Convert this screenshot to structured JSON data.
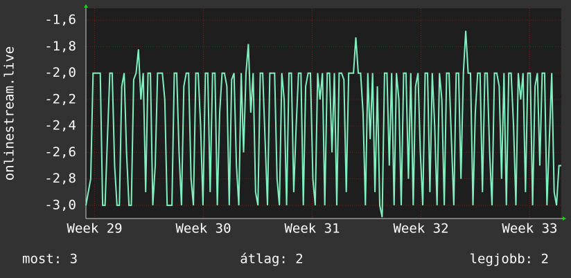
{
  "chart_data": {
    "type": "line",
    "y_label": "onlinestream.live",
    "footer": [
      "most: 3",
      "átlag: 2",
      "legjobb: 2"
    ],
    "color": "#80f0c0",
    "grid": true,
    "ylim": [
      -3.1,
      -1.51
    ],
    "yticks": [
      {
        "value": -3.0,
        "label": "-3,0"
      },
      {
        "value": -2.8,
        "label": "-2,8"
      },
      {
        "value": -2.6,
        "label": "-2,6"
      },
      {
        "value": -2.4,
        "label": "-2,4"
      },
      {
        "value": -2.2,
        "label": "-2,2"
      },
      {
        "value": -2.0,
        "label": "-2,0"
      },
      {
        "value": -1.8,
        "label": "-1,8"
      },
      {
        "value": -1.6,
        "label": "-1,6"
      }
    ],
    "xlim": [
      28.92,
      33.29
    ],
    "xticks": [
      {
        "value": 29,
        "label": "Week 29"
      },
      {
        "value": 30,
        "label": "Week 30"
      },
      {
        "value": 31,
        "label": "Week 31"
      },
      {
        "value": 32,
        "label": "Week 32"
      },
      {
        "value": 33,
        "label": "Week 33"
      }
    ],
    "values": [
      -3,
      -2.9,
      -2.8,
      -2,
      -2,
      -2,
      -2,
      -3,
      -3,
      -2.5,
      -2,
      -2,
      -2.7,
      -3,
      -3,
      -2.1,
      -2,
      -2.6,
      -3,
      -3,
      -2.05,
      -2,
      -1.82,
      -2.2,
      -2,
      -2.9,
      -2,
      -2,
      -3,
      -2.7,
      -2,
      -2,
      -2,
      -2.2,
      -3,
      -3,
      -3,
      -2,
      -2,
      -2.6,
      -3,
      -2.1,
      -2,
      -2,
      -2.8,
      -3,
      -2,
      -2,
      -2.4,
      -3,
      -2,
      -2,
      -2.9,
      -2,
      -2,
      -3,
      -2.3,
      -2,
      -2,
      -2.1,
      -3,
      -2.05,
      -2,
      -2.7,
      -3,
      -2,
      -2.6,
      -2,
      -1.78,
      -2.3,
      -2,
      -2.9,
      -3,
      -2,
      -2,
      -2.5,
      -3,
      -2,
      -2,
      -2,
      -2.8,
      -3,
      -2,
      -2.2,
      -3,
      -2,
      -2,
      -2.9,
      -2.4,
      -2,
      -2,
      -3,
      -2.1,
      -2,
      -2,
      -2.8,
      -3,
      -2,
      -2.2,
      -2,
      -3,
      -2,
      -2,
      -2.6,
      -2,
      -3,
      -2,
      -2,
      -2.05,
      -2.9,
      -2,
      -2,
      -2,
      -1.73,
      -2,
      -2,
      -2.3,
      -3,
      -2,
      -2.5,
      -2,
      -2.9,
      -2.1,
      -3,
      -3.09,
      -2,
      -2,
      -2.7,
      -2,
      -3,
      -2,
      -2.2,
      -3,
      -2,
      -2,
      -2.8,
      -2,
      -3,
      -2.1,
      -2,
      -2.6,
      -3,
      -2,
      -2,
      -2.9,
      -2,
      -2.4,
      -3,
      -2,
      -2.2,
      -3,
      -2,
      -2,
      -2.5,
      -3,
      -2,
      -2,
      -2.8,
      -2,
      -1.68,
      -2,
      -2,
      -3,
      -2.3,
      -2,
      -2,
      -2.9,
      -2,
      -2,
      -2.6,
      -3,
      -2,
      -2,
      -2.1,
      -2.8,
      -2,
      -3,
      -2,
      -2,
      -2.4,
      -3,
      -2,
      -2.2,
      -2,
      -2.9,
      -2,
      -2,
      -3,
      -2.1,
      -2,
      -2.7,
      -2,
      -2,
      -3,
      -2.5,
      -2,
      -2.9,
      -3,
      -2.7,
      -2.7
    ]
  }
}
